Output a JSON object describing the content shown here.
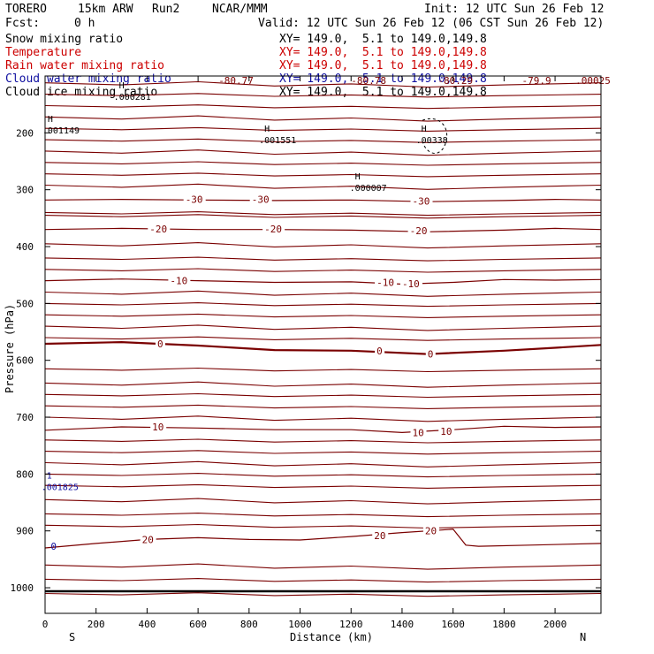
{
  "header": {
    "model": "TORERO",
    "resolution": "15km ARW",
    "run": "Run2",
    "center": "NCAR/MMM",
    "init": "Init: 12 UTC Sun 26 Feb 12",
    "fcst_label": "Fcst:",
    "fcst_value": "0 h",
    "valid": "Valid: 12 UTC Sun 26 Feb 12 (06 CST Sun 26 Feb 12)"
  },
  "fields": [
    {
      "name": "Snow mixing ratio",
      "color": "#000000",
      "xy": "XY= 149.0,  5.1 to 149.0,149.8"
    },
    {
      "name": "Temperature",
      "color": "#cc0000",
      "xy": "XY= 149.0,  5.1 to 149.0,149.8"
    },
    {
      "name": "Rain water mixing ratio",
      "color": "#cc0000",
      "xy": "XY= 149.0,  5.1 to 149.0,149.8"
    },
    {
      "name": "Cloud water mixing ratio",
      "color": "#1010a0",
      "xy": "XY= 149.0,  5.1 to 149.0,149.8"
    },
    {
      "name": "Cloud ice mixing ratio",
      "color": "#000000",
      "xy": "XY= 149.0,  5.1 to 149.0,149.8"
    }
  ],
  "chart_data": {
    "type": "line",
    "xlabel": "Distance (km)",
    "ylabel": "Pressure (hPa)",
    "xlim": [
      0,
      2180
    ],
    "ylim": [
      1045,
      100
    ],
    "x_ticks": [
      0,
      200,
      400,
      600,
      800,
      1000,
      1200,
      1400,
      1600,
      1800,
      2000
    ],
    "y_ticks": [
      200,
      300,
      400,
      500,
      600,
      700,
      800,
      900,
      1000
    ],
    "x_end_labels": {
      "left": "S",
      "right": "N"
    },
    "colors": {
      "temperature": "#7a0000",
      "frame": "#000000",
      "cloud_water": "#1010a0"
    },
    "temperature_isotherms": [
      {
        "label": "20",
        "x": [
          0,
          200,
          400,
          600,
          800,
          1000,
          1200,
          1400,
          1600,
          1650,
          1700,
          1900,
          2180
        ],
        "p": [
          930,
          922,
          915,
          912,
          915,
          916,
          910,
          903,
          897,
          925,
          927,
          925,
          922
        ]
      },
      {
        "label": "10",
        "x": [
          0,
          300,
          600,
          900,
          1200,
          1400,
          1600,
          1800,
          2000,
          2180
        ],
        "p": [
          723,
          717,
          719,
          722,
          722,
          727,
          722,
          716,
          718,
          717
        ]
      },
      {
        "label": "0",
        "x": [
          0,
          300,
          600,
          900,
          1200,
          1500,
          1800,
          2000,
          2180
        ],
        "p": [
          571,
          568,
          574,
          582,
          583,
          589,
          583,
          578,
          573
        ]
      },
      {
        "label": "-10",
        "x": [
          0,
          300,
          600,
          900,
          1200,
          1400,
          1600,
          1800,
          2000,
          2180
        ],
        "p": [
          460,
          457,
          460,
          463,
          462,
          466,
          463,
          458,
          459,
          458
        ]
      },
      {
        "label": "-20",
        "x": [
          0,
          300,
          600,
          900,
          1200,
          1500,
          1800,
          2000,
          2180
        ],
        "p": [
          370,
          368,
          370,
          370,
          371,
          374,
          371,
          368,
          370
        ]
      },
      {
        "label": "-30",
        "x": [
          0,
          300,
          600,
          900,
          1200,
          1500,
          1800,
          2000,
          2180
        ],
        "p": [
          318,
          317,
          318,
          319,
          318,
          321,
          319,
          317,
          318
        ]
      }
    ],
    "temperature_labels": [
      {
        "text": "20",
        "x": 380,
        "p": 915
      },
      {
        "text": "20",
        "x": 1290,
        "p": 908
      },
      {
        "text": "20",
        "x": 1490,
        "p": 900
      },
      {
        "text": "10",
        "x": 420,
        "p": 717
      },
      {
        "text": "10",
        "x": 1440,
        "p": 727
      },
      {
        "text": "10",
        "x": 1550,
        "p": 725
      },
      {
        "text": "0",
        "x": 440,
        "p": 571
      },
      {
        "text": "0",
        "x": 1300,
        "p": 583
      },
      {
        "text": "0",
        "x": 1500,
        "p": 589
      },
      {
        "text": "-10",
        "x": 490,
        "p": 460
      },
      {
        "text": "-10",
        "x": 1300,
        "p": 463
      },
      {
        "text": "-10",
        "x": 1400,
        "p": 465
      },
      {
        "text": "-20",
        "x": 410,
        "p": 369
      },
      {
        "text": "-20",
        "x": 860,
        "p": 369
      },
      {
        "text": "-20",
        "x": 1430,
        "p": 372
      },
      {
        "text": "-30",
        "x": 550,
        "p": 317
      },
      {
        "text": "-30",
        "x": 810,
        "p": 317
      },
      {
        "text": "-30",
        "x": 1440,
        "p": 320
      }
    ],
    "top_labels": [
      {
        "text": "-80.77",
        "x": 680,
        "p": 108
      },
      {
        "text": "-80.78",
        "x": 1200,
        "p": 108
      },
      {
        "text": "-80.29",
        "x": 1540,
        "p": 108
      },
      {
        "text": "-79.9",
        "x": 1870,
        "p": 108
      },
      {
        "text": ".00025",
        "x": 2080,
        "p": 108
      }
    ],
    "extrema": [
      {
        "marker": "H",
        "x": 290,
        "p": 122,
        "value": ".000281"
      },
      {
        "marker": "H",
        "x": 10,
        "p": 181,
        "value": ".001149"
      },
      {
        "marker": "H",
        "x": 860,
        "p": 198,
        "value": ".001551"
      },
      {
        "marker": "H",
        "x": 1475,
        "p": 198,
        "value": ".00338"
      },
      {
        "marker": "H",
        "x": 1215,
        "p": 282,
        "value": ".000007"
      },
      {
        "marker": "1",
        "x": 6,
        "p": 808,
        "value": ".001825"
      }
    ],
    "cloud_water_marker": {
      "text": "0",
      "x": 22,
      "p": 927
    }
  }
}
